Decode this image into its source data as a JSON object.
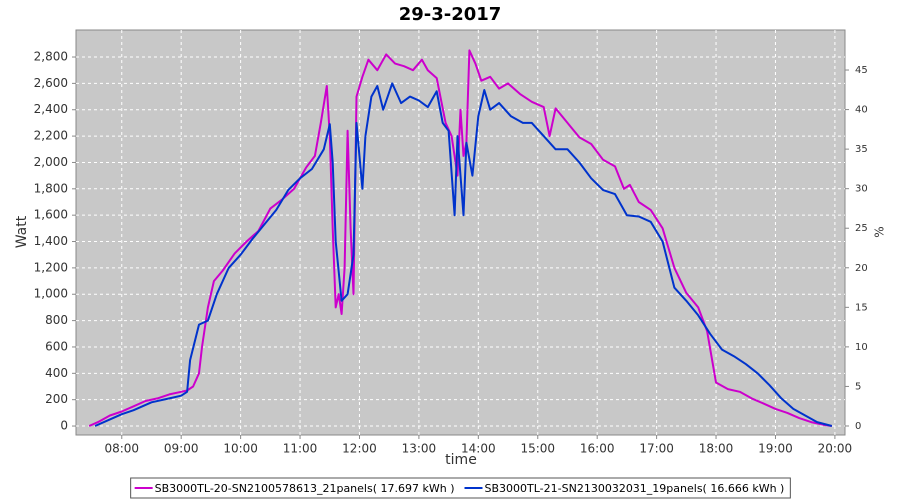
{
  "chart_data": {
    "type": "line",
    "title": "29-3-2017",
    "x_label": "time",
    "y_label": "Watt",
    "y2_label": "%",
    "xlim": [
      7.23,
      20.17
    ],
    "ylim": [
      -68,
      3005
    ],
    "y2lim": [
      -1.14,
      50.06
    ],
    "grid": true,
    "background": "#c8c8c8",
    "legend": "bottom",
    "xticks": [
      {
        "value": 8,
        "label": "08:00"
      },
      {
        "value": 9,
        "label": "09:00"
      },
      {
        "value": 10,
        "label": "10:00"
      },
      {
        "value": 11,
        "label": "11:00"
      },
      {
        "value": 12,
        "label": "12:00"
      },
      {
        "value": 13,
        "label": "13:00"
      },
      {
        "value": 14,
        "label": "14:00"
      },
      {
        "value": 15,
        "label": "15:00"
      },
      {
        "value": 16,
        "label": "16:00"
      },
      {
        "value": 17,
        "label": "17:00"
      },
      {
        "value": 18,
        "label": "18:00"
      },
      {
        "value": 19,
        "label": "19:00"
      },
      {
        "value": 20,
        "label": "20:00"
      }
    ],
    "yticks": [
      0,
      200,
      400,
      600,
      800,
      {
        "value": 1000,
        "label": "1,000"
      },
      {
        "value": 1200,
        "label": "1,200"
      },
      {
        "value": 1400,
        "label": "1,400"
      },
      {
        "value": 1600,
        "label": "1,600"
      },
      {
        "value": 1800,
        "label": "1,800"
      },
      {
        "value": 2000,
        "label": "2,000"
      },
      {
        "value": 2200,
        "label": "2,200"
      },
      {
        "value": 2400,
        "label": "2,400"
      },
      {
        "value": 2600,
        "label": "2,600"
      },
      {
        "value": 2800,
        "label": "2,800"
      }
    ],
    "y2ticks": [
      0,
      5,
      10,
      15,
      20,
      25,
      30,
      35,
      40,
      45
    ],
    "series": [
      {
        "name": "SB3000TL-20-SN2100578613_21panels( 17.697 kWh )",
        "color": "#cc00cc",
        "x": [
          7.45,
          7.6,
          7.8,
          8.0,
          8.2,
          8.4,
          8.6,
          8.8,
          9.0,
          9.1,
          9.2,
          9.3,
          9.35,
          9.45,
          9.55,
          9.7,
          9.9,
          10.1,
          10.3,
          10.5,
          10.7,
          10.9,
          11.1,
          11.25,
          11.35,
          11.45,
          11.5,
          11.55,
          11.6,
          11.65,
          11.7,
          11.75,
          11.8,
          11.85,
          11.9,
          11.95,
          12.05,
          12.15,
          12.3,
          12.45,
          12.6,
          12.75,
          12.9,
          13.05,
          13.15,
          13.3,
          13.45,
          13.55,
          13.65,
          13.7,
          13.75,
          13.8,
          13.85,
          13.95,
          14.05,
          14.2,
          14.35,
          14.5,
          14.7,
          14.9,
          15.1,
          15.2,
          15.3,
          15.5,
          15.7,
          15.9,
          16.1,
          16.3,
          16.45,
          16.55,
          16.7,
          16.9,
          17.1,
          17.3,
          17.5,
          17.7,
          17.85,
          18.0,
          18.2,
          18.4,
          18.6,
          18.8,
          19.0,
          19.2,
          19.4,
          19.6,
          19.8,
          19.95
        ],
        "values": [
          0,
          30,
          80,
          110,
          150,
          190,
          210,
          240,
          260,
          270,
          300,
          400,
          600,
          900,
          1100,
          1180,
          1310,
          1400,
          1480,
          1650,
          1720,
          1800,
          1960,
          2050,
          2300,
          2580,
          2200,
          1500,
          900,
          1000,
          850,
          1200,
          2240,
          1500,
          1000,
          2500,
          2650,
          2780,
          2700,
          2820,
          2750,
          2730,
          2700,
          2780,
          2700,
          2640,
          2300,
          2200,
          1900,
          2400,
          2050,
          2150,
          2850,
          2750,
          2620,
          2650,
          2560,
          2600,
          2520,
          2460,
          2420,
          2200,
          2410,
          2300,
          2190,
          2140,
          2020,
          1970,
          1800,
          1830,
          1700,
          1640,
          1500,
          1200,
          1010,
          900,
          720,
          330,
          280,
          260,
          210,
          170,
          130,
          100,
          60,
          30,
          10,
          0
        ]
      },
      {
        "name": "SB3000TL-21-SN2130032031_19panels( 16.666 kWh )",
        "color": "#0033cc",
        "x": [
          7.55,
          7.8,
          8.0,
          8.2,
          8.5,
          8.8,
          9.0,
          9.1,
          9.15,
          9.3,
          9.45,
          9.6,
          9.8,
          10.0,
          10.2,
          10.4,
          10.6,
          10.8,
          11.0,
          11.2,
          11.4,
          11.5,
          11.55,
          11.6,
          11.7,
          11.8,
          11.9,
          11.95,
          12.05,
          12.1,
          12.2,
          12.3,
          12.4,
          12.55,
          12.7,
          12.85,
          13.0,
          13.15,
          13.3,
          13.4,
          13.5,
          13.6,
          13.65,
          13.75,
          13.8,
          13.9,
          14.0,
          14.1,
          14.2,
          14.35,
          14.55,
          14.75,
          14.9,
          15.1,
          15.3,
          15.5,
          15.7,
          15.9,
          16.1,
          16.3,
          16.5,
          16.7,
          16.9,
          17.1,
          17.3,
          17.5,
          17.7,
          17.9,
          18.1,
          18.3,
          18.5,
          18.7,
          18.9,
          19.1,
          19.3,
          19.5,
          19.7,
          19.95
        ],
        "values": [
          0,
          50,
          90,
          120,
          180,
          210,
          230,
          260,
          500,
          770,
          800,
          1000,
          1200,
          1300,
          1420,
          1530,
          1640,
          1790,
          1880,
          1950,
          2100,
          2290,
          2000,
          1400,
          950,
          1000,
          1300,
          2300,
          1800,
          2200,
          2500,
          2580,
          2400,
          2600,
          2450,
          2500,
          2470,
          2420,
          2540,
          2300,
          2240,
          1600,
          2200,
          1600,
          2150,
          1900,
          2350,
          2550,
          2400,
          2450,
          2350,
          2300,
          2300,
          2200,
          2100,
          2100,
          2000,
          1880,
          1790,
          1760,
          1600,
          1590,
          1550,
          1400,
          1050,
          950,
          840,
          700,
          580,
          530,
          470,
          400,
          310,
          210,
          130,
          80,
          30,
          0
        ]
      }
    ]
  }
}
